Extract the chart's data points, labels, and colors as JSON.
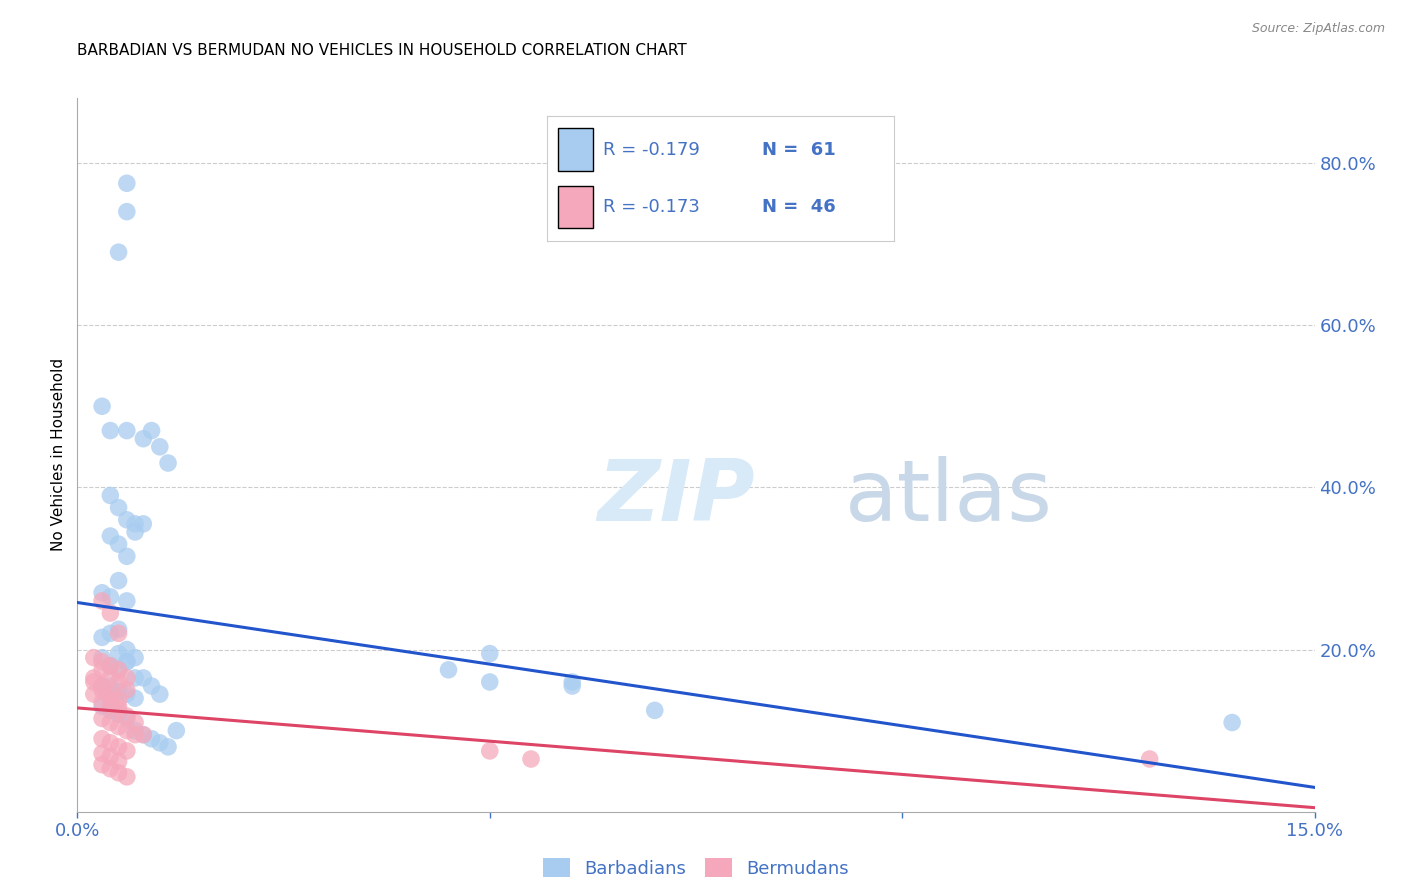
{
  "title": "BARBADIAN VS BERMUDAN NO VEHICLES IN HOUSEHOLD CORRELATION CHART",
  "source": "Source: ZipAtlas.com",
  "ylabel": "No Vehicles in Household",
  "legend_label1": "Barbadians",
  "legend_label2": "Bermudans",
  "r1": "-0.179",
  "n1": "61",
  "r2": "-0.173",
  "n2": "46",
  "xlim": [
    0.0,
    0.15
  ],
  "ylim": [
    0.0,
    0.88
  ],
  "yticks_right": [
    0.2,
    0.4,
    0.6,
    0.8
  ],
  "ytick_labels_right": [
    "20.0%",
    "40.0%",
    "60.0%",
    "80.0%"
  ],
  "color_blue": "#A8CCF0",
  "color_pink": "#F5A8BB",
  "line_blue": "#2255CC",
  "line_pink": "#DD4466",
  "watermark_zip": "ZIP",
  "watermark_atlas": "atlas",
  "title_fontsize": 11,
  "axis_color": "#4472C4",
  "background_color": "#FFFFFF",
  "grid_color": "#CCCCCC",
  "blue_scatter_x": [
    0.006,
    0.006,
    0.005,
    0.003,
    0.004,
    0.006,
    0.008,
    0.009,
    0.01,
    0.011,
    0.004,
    0.005,
    0.006,
    0.007,
    0.008,
    0.004,
    0.005,
    0.006,
    0.007,
    0.003,
    0.004,
    0.005,
    0.006,
    0.003,
    0.004,
    0.005,
    0.006,
    0.003,
    0.004,
    0.005,
    0.006,
    0.007,
    0.004,
    0.005,
    0.006,
    0.007,
    0.008,
    0.009,
    0.01,
    0.003,
    0.004,
    0.005,
    0.006,
    0.007,
    0.05,
    0.06,
    0.06,
    0.07,
    0.045,
    0.05,
    0.003,
    0.004,
    0.005,
    0.006,
    0.007,
    0.008,
    0.009,
    0.01,
    0.011,
    0.012,
    0.14
  ],
  "blue_scatter_y": [
    0.775,
    0.74,
    0.69,
    0.5,
    0.47,
    0.47,
    0.46,
    0.47,
    0.45,
    0.43,
    0.39,
    0.375,
    0.36,
    0.355,
    0.355,
    0.34,
    0.33,
    0.315,
    0.345,
    0.27,
    0.265,
    0.285,
    0.26,
    0.215,
    0.22,
    0.225,
    0.2,
    0.19,
    0.18,
    0.195,
    0.185,
    0.165,
    0.18,
    0.175,
    0.185,
    0.19,
    0.165,
    0.155,
    0.145,
    0.155,
    0.155,
    0.148,
    0.145,
    0.14,
    0.195,
    0.16,
    0.155,
    0.125,
    0.175,
    0.16,
    0.13,
    0.125,
    0.12,
    0.115,
    0.1,
    0.095,
    0.09,
    0.085,
    0.08,
    0.1,
    0.11
  ],
  "pink_scatter_x": [
    0.003,
    0.004,
    0.005,
    0.002,
    0.003,
    0.004,
    0.005,
    0.006,
    0.002,
    0.003,
    0.004,
    0.005,
    0.002,
    0.003,
    0.004,
    0.005,
    0.003,
    0.004,
    0.005,
    0.006,
    0.003,
    0.004,
    0.005,
    0.006,
    0.007,
    0.008,
    0.003,
    0.004,
    0.005,
    0.006,
    0.007,
    0.003,
    0.004,
    0.005,
    0.006,
    0.003,
    0.004,
    0.005,
    0.05,
    0.055,
    0.003,
    0.004,
    0.005,
    0.006,
    0.13,
    0.002
  ],
  "pink_scatter_y": [
    0.26,
    0.245,
    0.22,
    0.19,
    0.185,
    0.18,
    0.175,
    0.165,
    0.165,
    0.155,
    0.145,
    0.138,
    0.16,
    0.15,
    0.14,
    0.13,
    0.175,
    0.165,
    0.16,
    0.15,
    0.135,
    0.13,
    0.125,
    0.118,
    0.11,
    0.095,
    0.115,
    0.11,
    0.105,
    0.1,
    0.095,
    0.09,
    0.085,
    0.08,
    0.075,
    0.072,
    0.068,
    0.062,
    0.075,
    0.065,
    0.058,
    0.053,
    0.048,
    0.043,
    0.065,
    0.145
  ],
  "blue_line_x": [
    0.0,
    0.15
  ],
  "blue_line_y": [
    0.258,
    0.03
  ],
  "pink_line_x": [
    0.0,
    0.15
  ],
  "pink_line_y": [
    0.128,
    0.005
  ]
}
